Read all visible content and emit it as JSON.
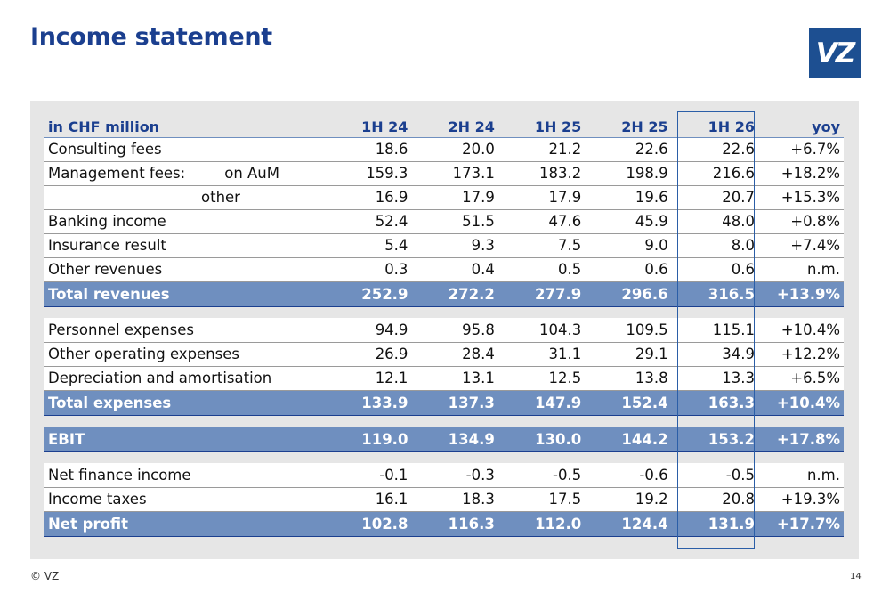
{
  "title": "Income statement",
  "logo": "VZ",
  "table": {
    "header": [
      "in CHF million",
      "1H 24",
      "2H 24",
      "1H 25",
      "2H 25",
      "1H 26",
      "yoy"
    ],
    "revenues": [
      {
        "label": "Consulting fees",
        "sublabel": "",
        "values": [
          "18.6",
          "20.0",
          "21.2",
          "22.6",
          "22.6",
          "+6.7%"
        ]
      },
      {
        "label": "Management fees:",
        "sublabel": "on AuM",
        "values": [
          "159.3",
          "173.1",
          "183.2",
          "198.9",
          "216.6",
          "+18.2%"
        ]
      },
      {
        "label": "",
        "sublabel": "other",
        "values": [
          "16.9",
          "17.9",
          "17.9",
          "19.6",
          "20.7",
          "+15.3%"
        ]
      },
      {
        "label": "Banking income",
        "sublabel": "",
        "values": [
          "52.4",
          "51.5",
          "47.6",
          "45.9",
          "48.0",
          "+0.8%"
        ]
      },
      {
        "label": "Insurance result",
        "sublabel": "",
        "values": [
          "5.4",
          "9.3",
          "7.5",
          "9.0",
          "8.0",
          "+7.4%"
        ]
      },
      {
        "label": "Other revenues",
        "sublabel": "",
        "values": [
          "0.3",
          "0.4",
          "0.5",
          "0.6",
          "0.6",
          "n.m."
        ]
      }
    ],
    "total_revenues": {
      "label": "Total revenues",
      "values": [
        "252.9",
        "272.2",
        "277.9",
        "296.6",
        "316.5",
        "+13.9%"
      ]
    },
    "expenses": [
      {
        "label": "Personnel expenses",
        "values": [
          "94.9",
          "95.8",
          "104.3",
          "109.5",
          "115.1",
          "+10.4%"
        ]
      },
      {
        "label": "Other operating expenses",
        "values": [
          "26.9",
          "28.4",
          "31.1",
          "29.1",
          "34.9",
          "+12.2%"
        ]
      },
      {
        "label": "Depreciation and amortisation",
        "values": [
          "12.1",
          "13.1",
          "12.5",
          "13.8",
          "13.3",
          "+6.5%"
        ]
      }
    ],
    "total_expenses": {
      "label": "Total expenses",
      "values": [
        "133.9",
        "137.3",
        "147.9",
        "152.4",
        "163.3",
        "+10.4%"
      ]
    },
    "ebit": {
      "label": "EBIT",
      "values": [
        "119.0",
        "134.9",
        "130.0",
        "144.2",
        "153.2",
        "+17.8%"
      ]
    },
    "other": [
      {
        "label": "Net finance income",
        "values": [
          "-0.1",
          "-0.3",
          "-0.5",
          "-0.6",
          "-0.5",
          "n.m."
        ]
      },
      {
        "label": "Income taxes",
        "values": [
          "16.1",
          "18.3",
          "17.5",
          "19.2",
          "20.8",
          "+19.3%"
        ]
      }
    ],
    "net_profit": {
      "label": "Net profit",
      "values": [
        "102.8",
        "116.3",
        "112.0",
        "124.4",
        "131.9",
        "+17.7%"
      ]
    }
  },
  "footer": "© VZ",
  "page_number": "14"
}
